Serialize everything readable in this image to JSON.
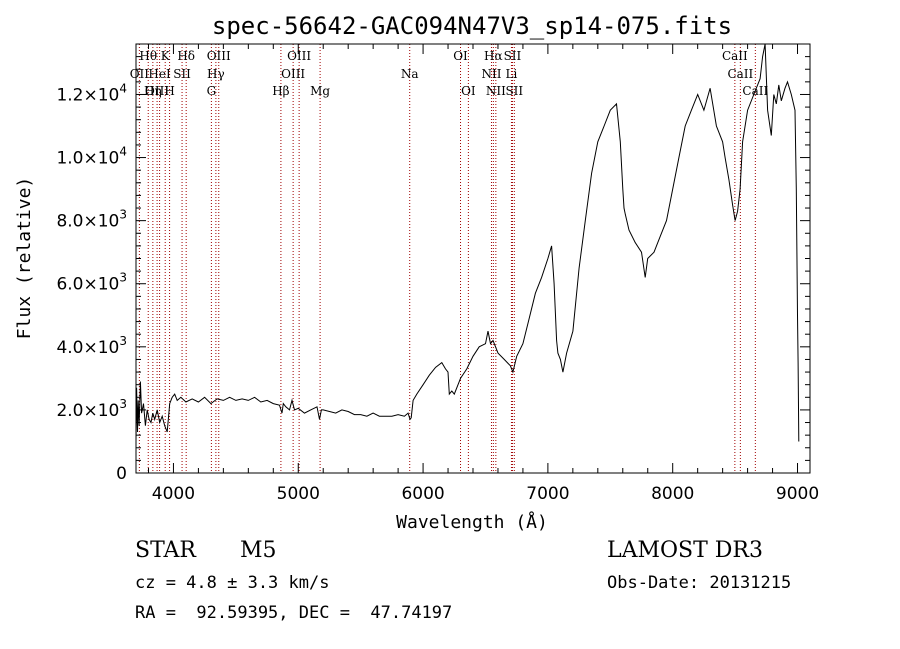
{
  "chart_data": {
    "type": "line",
    "title": "spec-56642-GAC094N47V3_sp14-075.fits",
    "xlabel": "Wavelength (Å)",
    "ylabel": "Flux (relative)",
    "xlim": [
      3700,
      9100
    ],
    "ylim": [
      0,
      13600
    ],
    "x_ticks": [
      4000,
      5000,
      6000,
      7000,
      8000,
      9000
    ],
    "x_tick_labels": [
      "4000",
      "5000",
      "6000",
      "7000",
      "8000",
      "9000"
    ],
    "y_ticks": [
      0,
      2000,
      4000,
      6000,
      8000,
      10000,
      12000
    ],
    "y_tick_mantissas": [
      "0",
      "2.0×10",
      "4.0×10",
      "6.0×10",
      "8.0×10",
      "1.0×10",
      "1.2×10"
    ],
    "y_tick_exponents": [
      "",
      "3",
      "3",
      "3",
      "3",
      "4",
      "4"
    ],
    "series": [
      {
        "name": "spectrum",
        "x": [
          3700,
          3705,
          3712,
          3718,
          3725,
          3735,
          3745,
          3760,
          3775,
          3790,
          3805,
          3820,
          3835,
          3850,
          3870,
          3890,
          3910,
          3930,
          3950,
          3970,
          3990,
          4010,
          4030,
          4060,
          4100,
          4150,
          4200,
          4250,
          4300,
          4350,
          4400,
          4450,
          4500,
          4550,
          4600,
          4650,
          4700,
          4750,
          4800,
          4850,
          4870,
          4880,
          4900,
          4930,
          4950,
          4970,
          5000,
          5050,
          5100,
          5150,
          5170,
          5185,
          5200,
          5250,
          5300,
          5350,
          5400,
          5450,
          5500,
          5550,
          5600,
          5650,
          5700,
          5750,
          5800,
          5850,
          5880,
          5895,
          5905,
          5920,
          5950,
          6000,
          6050,
          6100,
          6150,
          6180,
          6200,
          6210,
          6230,
          6250,
          6300,
          6350,
          6400,
          6450,
          6500,
          6520,
          6540,
          6560,
          6600,
          6650,
          6700,
          6720,
          6750,
          6800,
          6850,
          6900,
          6950,
          7000,
          7030,
          7050,
          7070,
          7080,
          7100,
          7120,
          7150,
          7200,
          7250,
          7300,
          7350,
          7400,
          7450,
          7500,
          7550,
          7580,
          7600,
          7610,
          7620,
          7650,
          7700,
          7750,
          7780,
          7800,
          7850,
          7900,
          7950,
          8000,
          8050,
          8100,
          8150,
          8200,
          8250,
          8300,
          8350,
          8400,
          8420,
          8450,
          8480,
          8500,
          8520,
          8540,
          8560,
          8600,
          8650,
          8700,
          8720,
          8740,
          8760,
          8790,
          8810,
          8830,
          8850,
          8870,
          8900,
          8920,
          8950,
          8980,
          8990,
          9000,
          9005,
          9010
        ],
        "y": [
          1000,
          2700,
          1300,
          2300,
          1500,
          2900,
          1900,
          2200,
          1500,
          2000,
          1700,
          1600,
          1900,
          1700,
          2000,
          1600,
          1800,
          1500,
          1300,
          2200,
          2400,
          2500,
          2300,
          2400,
          2250,
          2350,
          2250,
          2400,
          2200,
          2350,
          2300,
          2400,
          2300,
          2350,
          2300,
          2400,
          2250,
          2300,
          2200,
          2150,
          1900,
          2200,
          2100,
          2000,
          2300,
          2000,
          2050,
          1900,
          2000,
          2100,
          1700,
          2000,
          2000,
          1950,
          1900,
          2000,
          1950,
          1850,
          1850,
          1800,
          1900,
          1800,
          1800,
          1800,
          1850,
          1800,
          1900,
          1700,
          1750,
          2300,
          2500,
          2800,
          3100,
          3350,
          3500,
          3300,
          3200,
          2500,
          2600,
          2500,
          3000,
          3300,
          3700,
          4000,
          4100,
          4500,
          4100,
          4200,
          3800,
          3600,
          3400,
          3200,
          3700,
          4100,
          4900,
          5700,
          6200,
          6800,
          7200,
          6000,
          4200,
          3800,
          3600,
          3200,
          3800,
          4500,
          6500,
          8000,
          9500,
          10500,
          11000,
          11500,
          11700,
          10500,
          9000,
          8400,
          8200,
          7700,
          7300,
          7000,
          6200,
          6800,
          7000,
          7500,
          8000,
          9000,
          10000,
          11000,
          11500,
          12000,
          11500,
          12200,
          11000,
          10500,
          10000,
          9300,
          8500,
          8000,
          8300,
          9000,
          10500,
          11500,
          12000,
          12500,
          13200,
          13600,
          11500,
          10700,
          12000,
          11700,
          12300,
          11800,
          12200,
          12400,
          12000,
          11500,
          9000,
          5000,
          3500,
          1000
        ]
      }
    ],
    "lines": [
      {
        "label": "Hθ",
        "wl": 3798,
        "row": 0
      },
      {
        "label": "OII",
        "wl": 3727,
        "row": 1
      },
      {
        "label": "OIII",
        "wl": 3869,
        "row": 2
      },
      {
        "label": "K",
        "wl": 3934,
        "row": 0
      },
      {
        "label": "HeI",
        "wl": 3889,
        "row": 1
      },
      {
        "label": "Hη",
        "wl": 3835,
        "row": 2
      },
      {
        "label": "H",
        "wl": 3969,
        "row": 2
      },
      {
        "label": "SII",
        "wl": 4069,
        "row": 1
      },
      {
        "label": "Hδ",
        "wl": 4102,
        "row": 0
      },
      {
        "label": "OIII",
        "wl": 4363,
        "row": 0
      },
      {
        "label": "Hγ",
        "wl": 4340,
        "row": 1
      },
      {
        "label": "G",
        "wl": 4304,
        "row": 2
      },
      {
        "label": "Hβ",
        "wl": 4861,
        "row": 2
      },
      {
        "label": "OIII",
        "wl": 5007,
        "row": 0
      },
      {
        "label": "OIII",
        "wl": 4959,
        "row": 1
      },
      {
        "label": "Mg",
        "wl": 5175,
        "row": 2
      },
      {
        "label": "Na",
        "wl": 5893,
        "row": 1
      },
      {
        "label": "OI",
        "wl": 6300,
        "row": 0
      },
      {
        "label": "OI",
        "wl": 6363,
        "row": 2
      },
      {
        "label": "Hα",
        "wl": 6563,
        "row": 0
      },
      {
        "label": "SII",
        "wl": 6716,
        "row": 0
      },
      {
        "label": "NII",
        "wl": 6548,
        "row": 1
      },
      {
        "label": "Li",
        "wl": 6708,
        "row": 1
      },
      {
        "label": "NII",
        "wl": 6583,
        "row": 2
      },
      {
        "label": "SII",
        "wl": 6731,
        "row": 2
      },
      {
        "label": "CaII",
        "wl": 8498,
        "row": 0
      },
      {
        "label": "CaII",
        "wl": 8542,
        "row": 1
      },
      {
        "label": "CaII",
        "wl": 8662,
        "row": 2
      }
    ],
    "colors": {
      "spectrum": "#000000",
      "lines": "#a00000",
      "axes": "#000000"
    }
  },
  "info": {
    "class": "STAR",
    "subclass": "M5",
    "survey": "LAMOST DR3",
    "cz": "cz = 4.8 ± 3.3 km/s",
    "obs_date": "Obs-Date: 20131215",
    "radec": "RA =  92.59395, DEC =  47.74197"
  }
}
